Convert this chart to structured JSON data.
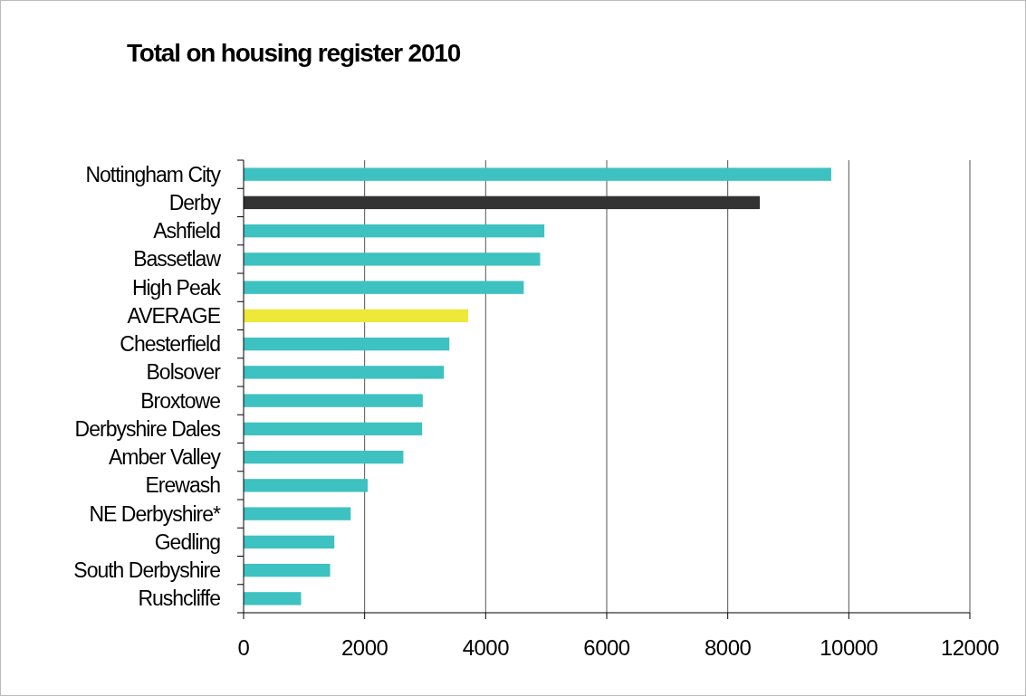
{
  "chart_data": {
    "type": "bar",
    "orientation": "horizontal",
    "title": "Total on housing register 2010",
    "categories": [
      "Nottingham City",
      "Derby",
      "Ashfield",
      "Bassetlaw",
      "High Peak",
      "AVERAGE",
      "Chesterfield",
      "Bolsover",
      "Broxtowe",
      "Derbyshire Dales",
      "Amber Valley",
      "Erewash",
      "NE Derbyshire*",
      "Gedling",
      "South Derbyshire",
      "Rushcliffe"
    ],
    "values": [
      9710,
      8530,
      4970,
      4900,
      4630,
      3710,
      3400,
      3310,
      2960,
      2950,
      2640,
      2050,
      1770,
      1500,
      1430,
      950
    ],
    "colors": [
      "#3ec1c1",
      "#333333",
      "#3ec1c1",
      "#3ec1c1",
      "#3ec1c1",
      "#ede83a",
      "#3ec1c1",
      "#3ec1c1",
      "#3ec1c1",
      "#3ec1c1",
      "#3ec1c1",
      "#3ec1c1",
      "#3ec1c1",
      "#3ec1c1",
      "#3ec1c1",
      "#3ec1c1"
    ],
    "xlim": [
      0,
      12000
    ],
    "xticks": [
      0,
      2000,
      4000,
      6000,
      8000,
      10000,
      12000
    ],
    "grid": "x"
  }
}
